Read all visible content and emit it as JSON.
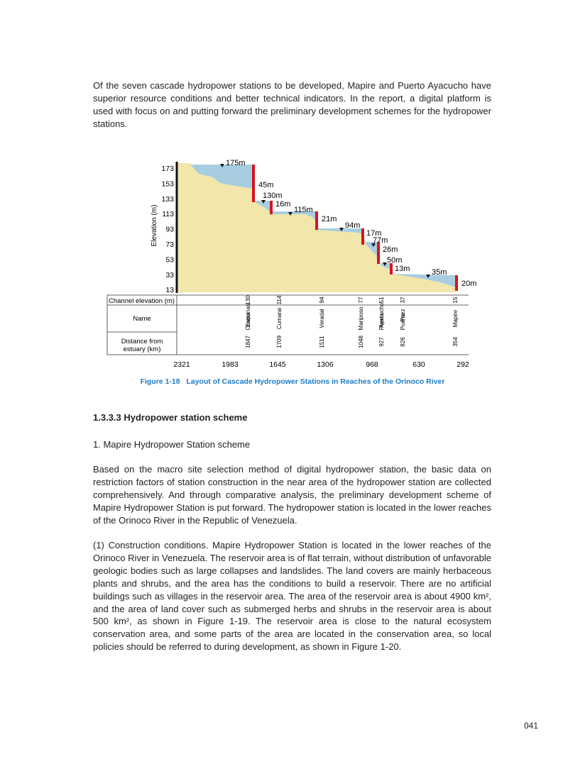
{
  "intro": "Of the seven cascade hydropower stations to be developed, Mapire and Puerto Ayacucho have superior resource conditions and better technical indicators. In the report, a digital platform is used with focus on and putting forward the preliminary development schemes for the hydropower stations.",
  "figure": {
    "y_axis_title": "Elevation (m)",
    "y_ticks": [
      "173",
      "153",
      "133",
      "113",
      "93",
      "73",
      "53",
      "33",
      "13"
    ],
    "heads": [
      "175m",
      "45m",
      "130m",
      "16m",
      "115m",
      "21m",
      "94m",
      "17m",
      "77m",
      "26m",
      "50m",
      "13m",
      "35m",
      "20m"
    ],
    "row_labels": [
      "Channel elevation (m)",
      "Name",
      "Distance from estuary (km)"
    ],
    "stations": [
      {
        "channel_elevation": "130",
        "name": "Cuatro Esquinas",
        "distance": "1847"
      },
      {
        "channel_elevation": "114",
        "name": "Cumarai",
        "distance": "1709"
      },
      {
        "channel_elevation": "94",
        "name": "Veradal",
        "distance": "1511"
      },
      {
        "channel_elevation": "77",
        "name": "Mariposo",
        "distance": "1048"
      },
      {
        "channel_elevation": "51",
        "name": "Puerto Ayacucho",
        "distance": "927"
      },
      {
        "channel_elevation": "37",
        "name": "Puerto Paez",
        "distance": "826"
      },
      {
        "channel_elevation": "15",
        "name": "Mapire",
        "distance": "354"
      }
    ],
    "x_ticks": [
      "2321",
      "1983",
      "1645",
      "1306",
      "968",
      "630",
      "292"
    ],
    "caption": "Figure 1-18   Layout of Cascade Hydropower Stations in Reaches of the Orinoco River"
  },
  "section_heading": "1.3.3.3  Hydropower station scheme",
  "subheading": "1. Mapire Hydropower Station scheme",
  "paragraphs": [
    "Based on the macro site selection method of digital hydropower station, the basic data on restriction factors of station construction in the near area of the hydropower station are collected comprehensively. And through comparative analysis, the preliminary development scheme of Mapire Hydropower Station is put forward. The hydropower station is located in the lower reaches of the Orinoco River in the Republic of Venezuela.",
    "(1) Construction conditions. Mapire Hydropower Station is located in the lower reaches of the Orinoco River in Venezuela. The reservoir area is of flat terrain, without distribution of unfavorable geologic bodies such as large collapses and landslides. The land covers are mainly herbaceous plants and shrubs, and the area has the conditions to build a reservoir. There are no artificial buildings such as villages in the reservoir area. The area of the reservoir area is about 4900 km², and the area of land cover such as submerged herbs and shrubs in the reservoir area is about 500 km², as shown in Figure 1-19. The reservoir area is close to the natural ecosystem conservation area, and some parts of the area are located in the conservation area, so local policies should be referred to during development, as shown in Figure 1-20."
  ],
  "page_number": "041"
}
